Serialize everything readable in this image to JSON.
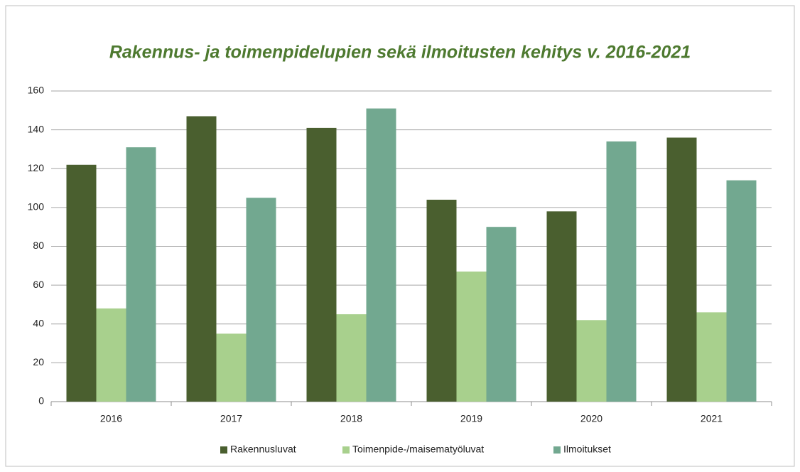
{
  "chart_data": {
    "type": "bar",
    "title": "Rakennus- ja toimenpidelupien sekä ilmoitusten kehitys v. 2016-2021",
    "categories": [
      "2016",
      "2017",
      "2018",
      "2019",
      "2020",
      "2021"
    ],
    "series": [
      {
        "name": "Rakennusluvat",
        "color": "#4a5f2f",
        "values": [
          122,
          147,
          141,
          104,
          98,
          136
        ]
      },
      {
        "name": "Toimenpide-/maisematyöluvat",
        "color": "#a8d08d",
        "values": [
          48,
          35,
          45,
          67,
          42,
          46
        ]
      },
      {
        "name": "Ilmoitukset",
        "color": "#72a890",
        "values": [
          131,
          105,
          151,
          90,
          134,
          114
        ]
      }
    ],
    "ylim": [
      0,
      160
    ],
    "yticks": [
      0,
      20,
      40,
      60,
      80,
      100,
      120,
      140,
      160
    ],
    "grid": true,
    "legend": "bottom"
  }
}
